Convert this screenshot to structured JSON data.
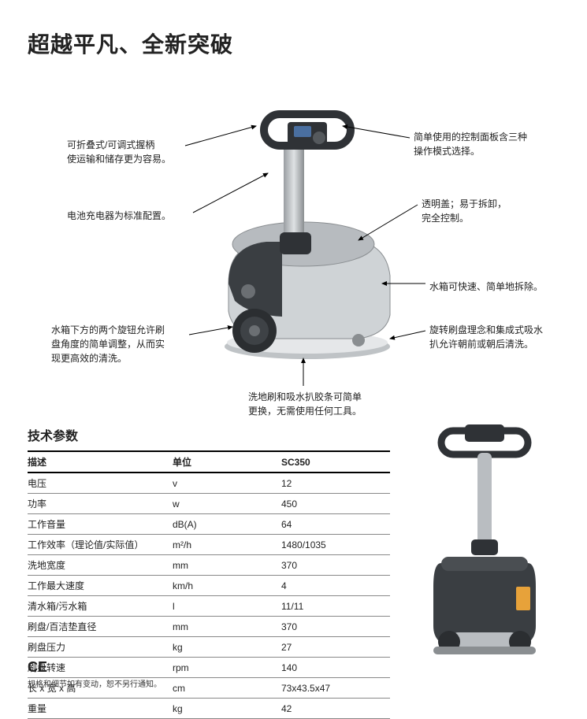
{
  "title": "超越平凡、全新突破",
  "callouts": {
    "handle": "可折叠式/可调式握柄\n使运输和储存更为容易。",
    "charger": "电池充电器为标准配置。",
    "knobs": "水箱下方的两个旋钮允许刷\n盘角度的简单调整，从而实\n现更高效的清洗。",
    "panel": "简单使用的控制面板含三种\n操作模式选择。",
    "cover": "透明盖；易于拆卸，\n完全控制。",
    "tank": "水箱可快速、简单地拆除。",
    "deck": "旋转刷盘理念和集成式吸水\n扒允许朝前或朝后清洗。",
    "brush": "洗地刷和吸水扒胶条可简单\n更换，无需使用任何工具。"
  },
  "specs_title": "技术参数",
  "specs_headers": {
    "desc": "描述",
    "unit": "单位",
    "model": "SC350"
  },
  "specs": [
    {
      "desc": "电压",
      "unit": "v",
      "val": "12"
    },
    {
      "desc": "功率",
      "unit": "w",
      "val": "450"
    },
    {
      "desc": "工作音量",
      "unit": "dB(A)",
      "val": "64"
    },
    {
      "desc": "工作效率（理论值/实际值）",
      "unit": "m²/h",
      "val": "1480/1035"
    },
    {
      "desc": "洗地宽度",
      "unit": "mm",
      "val": "370"
    },
    {
      "desc": "工作最大速度",
      "unit": "km/h",
      "val": "4"
    },
    {
      "desc": "清水箱/污水箱",
      "unit": "l",
      "val": "11/11"
    },
    {
      "desc": "刷盘/百洁垫直径",
      "unit": "mm",
      "val": "370"
    },
    {
      "desc": "刷盘压力",
      "unit": "kg",
      "val": "27"
    },
    {
      "desc": "刷盘转速",
      "unit": "rpm",
      "val": "140"
    },
    {
      "desc": "长 x 宽 x 高",
      "unit": "cm",
      "val": "73x43.5x47"
    },
    {
      "desc": "重量",
      "unit": "kg",
      "val": "42"
    }
  ],
  "disclaimer": "规格和细节如有变动，恕不另行通知。",
  "ce": "CE",
  "colors": {
    "body_light": "#cfd3d6",
    "body_dark": "#3a3e42",
    "gray_mid": "#8a8e91",
    "wheel": "#2b2e31",
    "handle": "#2f3236"
  }
}
